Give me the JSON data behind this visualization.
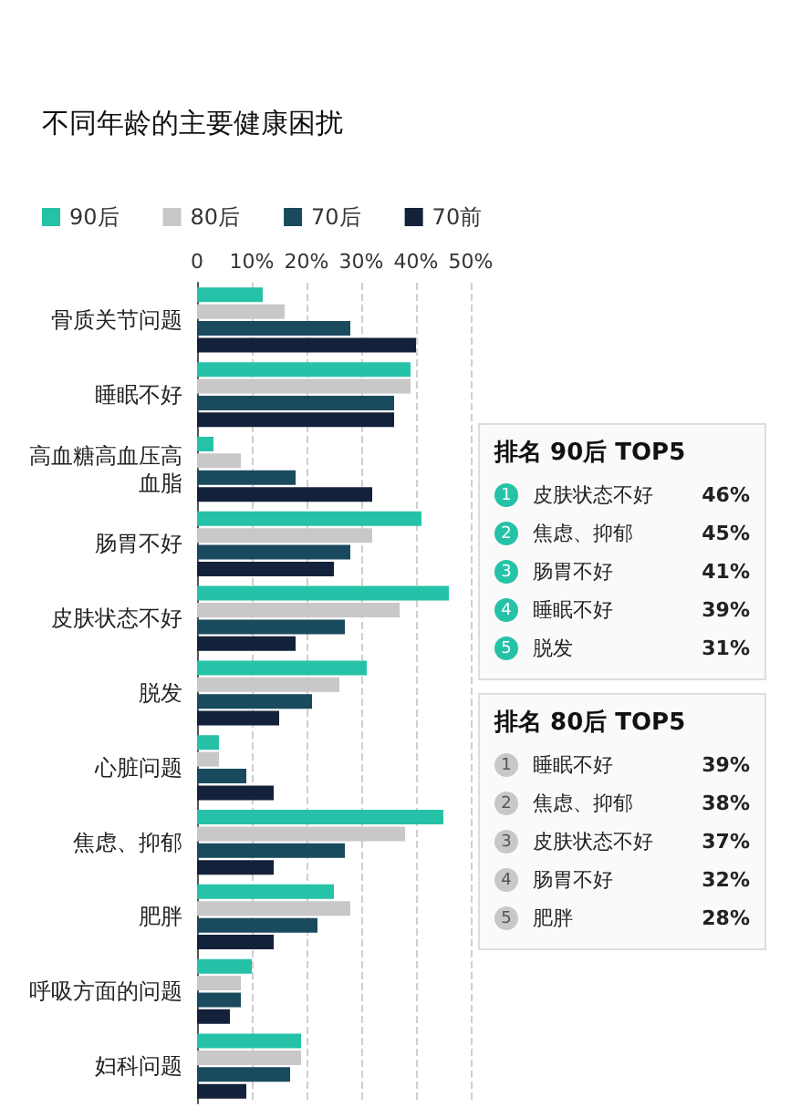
{
  "chart_data": {
    "type": "bar",
    "orientation": "horizontal",
    "title": "不同年龄的主要健康困扰",
    "categories": [
      "骨质关节问题",
      "睡眠不好",
      "高血糖高血压高血脂",
      "肠胃不好",
      "皮肤状态不好",
      "脱发",
      "心脏问题",
      "焦虑、抑郁",
      "肥胖",
      "呼吸方面的问题",
      "妇科问题"
    ],
    "series": [
      {
        "name": "90后",
        "color": "#26c2a8",
        "values": [
          12,
          39,
          3,
          41,
          46,
          31,
          4,
          45,
          25,
          10,
          19
        ]
      },
      {
        "name": "80后",
        "color": "#c8c8c8",
        "values": [
          16,
          39,
          8,
          32,
          37,
          26,
          4,
          38,
          28,
          8,
          19
        ]
      },
      {
        "name": "70后",
        "color": "#1a4a5e",
        "values": [
          28,
          36,
          18,
          28,
          27,
          21,
          9,
          27,
          22,
          8,
          17
        ]
      },
      {
        "name": "70前",
        "color": "#14213a",
        "values": [
          40,
          36,
          32,
          25,
          18,
          15,
          14,
          14,
          14,
          6,
          9
        ]
      }
    ],
    "xlim": [
      0,
      50
    ],
    "xticks": [
      {
        "value": 0,
        "label": "0"
      },
      {
        "value": 10,
        "label": "10%"
      },
      {
        "value": 20,
        "label": "20%"
      },
      {
        "value": 30,
        "label": "30%"
      },
      {
        "value": 40,
        "label": "40%"
      },
      {
        "value": 50,
        "label": "50%"
      }
    ],
    "grid": "x",
    "legend": "top left",
    "annotations": [
      "排名 90后 TOP5",
      "1",
      "皮肤状态不好",
      "46%",
      "2",
      "焦虑、抑郁",
      "45%",
      "3",
      "肠胃不好",
      "41%",
      "4",
      "睡眠不好",
      "39%",
      "5",
      "脱发",
      "31%",
      "排名 80后 TOP5",
      "1",
      "睡眠不好",
      "39%",
      "2",
      "焦虑、抑郁",
      "38%",
      "3",
      "皮肤状态不好",
      "37%",
      "4",
      "肠胃不好",
      "32%",
      "5",
      "肥胖",
      "28%"
    ]
  }
}
